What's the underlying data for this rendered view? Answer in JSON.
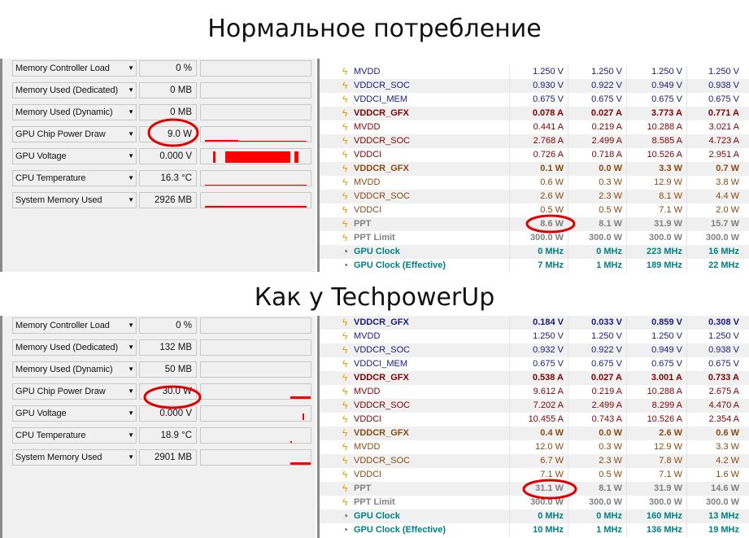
{
  "captions": {
    "top": "Нормальное потребление",
    "bottom": "Как у TechpowerUp"
  },
  "colors": {
    "volt": "#1a1a80",
    "amp": "#800000",
    "watt": "#8b4a10",
    "ppt": "#808080",
    "clock": "#008080",
    "graph": "#ff0000",
    "annotation": "#e00000"
  },
  "panels": [
    {
      "sensors": [
        {
          "label": "Memory Controller Load",
          "value": "0 %"
        },
        {
          "label": "Memory Used (Dedicated)",
          "value": "0 MB"
        },
        {
          "label": "Memory Used (Dynamic)",
          "value": "0 MB"
        },
        {
          "label": "GPU Chip Power Draw",
          "value": "9.0 W"
        },
        {
          "label": "GPU Voltage",
          "value": "0.000 V"
        },
        {
          "label": "CPU Temperature",
          "value": "16.3 °C"
        },
        {
          "label": "System Memory Used",
          "value": "2926 MB"
        }
      ],
      "table": [
        {
          "n": "MVDD",
          "t": "volt",
          "v": [
            "1.250 V",
            "1.250 V",
            "1.250 V",
            "1.250 V"
          ]
        },
        {
          "n": "VDDCR_SOC",
          "t": "volt",
          "v": [
            "0.930 V",
            "0.922 V",
            "0.949 V",
            "0.938 V"
          ]
        },
        {
          "n": "VDDCI_MEM",
          "t": "volt",
          "v": [
            "0.675 V",
            "0.675 V",
            "0.675 V",
            "0.675 V"
          ]
        },
        {
          "n": "VDDCR_GFX",
          "t": "amp",
          "b": true,
          "v": [
            "0.078 A",
            "0.027 A",
            "3.773 A",
            "0.771 A"
          ]
        },
        {
          "n": "MVDD",
          "t": "amp",
          "v": [
            "0.441 A",
            "0.219 A",
            "10.288 A",
            "3.021 A"
          ]
        },
        {
          "n": "VDDCR_SOC",
          "t": "amp",
          "v": [
            "2.768 A",
            "2.499 A",
            "8.585 A",
            "4.723 A"
          ]
        },
        {
          "n": "VDDCI",
          "t": "amp",
          "v": [
            "0.726 A",
            "0.718 A",
            "10.526 A",
            "2.951 A"
          ]
        },
        {
          "n": "VDDCR_GFX",
          "t": "watt",
          "b": true,
          "v": [
            "0.1 W",
            "0.0 W",
            "3.3 W",
            "0.7 W"
          ]
        },
        {
          "n": "MVDD",
          "t": "watt",
          "v": [
            "0.6 W",
            "0.3 W",
            "12.9 W",
            "3.8 W"
          ]
        },
        {
          "n": "VDDCR_SOC",
          "t": "watt",
          "v": [
            "2.6 W",
            "2.3 W",
            "8.1 W",
            "4.4 W"
          ]
        },
        {
          "n": "VDDCI",
          "t": "watt",
          "v": [
            "0.5 W",
            "0.5 W",
            "7.1 W",
            "2.0 W"
          ]
        },
        {
          "n": "PPT",
          "t": "ppt",
          "b": true,
          "v": [
            "8.6 W",
            "8.1 W",
            "31.9 W",
            "15.7 W"
          ]
        },
        {
          "n": "PPT Limit",
          "t": "ppt",
          "b": true,
          "v": [
            "300.0 W",
            "300.0 W",
            "300.0 W",
            "300.0 W"
          ]
        },
        {
          "n": "GPU Clock",
          "t": "clock",
          "b": true,
          "v": [
            "0 MHz",
            "0 MHz",
            "223 MHz",
            "16 MHz"
          ]
        },
        {
          "n": "GPU Clock (Effective)",
          "t": "clock",
          "b": true,
          "v": [
            "7 MHz",
            "1 MHz",
            "189 MHz",
            "22 MHz"
          ]
        }
      ]
    },
    {
      "sensors": [
        {
          "label": "Memory Controller Load",
          "value": "0 %"
        },
        {
          "label": "Memory Used (Dedicated)",
          "value": "132 MB"
        },
        {
          "label": "Memory Used (Dynamic)",
          "value": "50 MB"
        },
        {
          "label": "GPU Chip Power Draw",
          "value": "30.0 W"
        },
        {
          "label": "GPU Voltage",
          "value": "0.000 V"
        },
        {
          "label": "CPU Temperature",
          "value": "18.9 °C"
        },
        {
          "label": "System Memory Used",
          "value": "2901 MB"
        }
      ],
      "table": [
        {
          "n": "VDDCR_GFX",
          "t": "volt",
          "b": true,
          "v": [
            "0.184 V",
            "0.033 V",
            "0.859 V",
            "0.308 V"
          ]
        },
        {
          "n": "MVDD",
          "t": "volt",
          "v": [
            "1.250 V",
            "1.250 V",
            "1.250 V",
            "1.250 V"
          ]
        },
        {
          "n": "VDDCR_SOC",
          "t": "volt",
          "v": [
            "0.932 V",
            "0.922 V",
            "0.949 V",
            "0.938 V"
          ]
        },
        {
          "n": "VDDCI_MEM",
          "t": "volt",
          "v": [
            "0.675 V",
            "0.675 V",
            "0.675 V",
            "0.675 V"
          ]
        },
        {
          "n": "VDDCR_GFX",
          "t": "amp",
          "b": true,
          "v": [
            "0.538 A",
            "0.027 A",
            "3.001 A",
            "0.733 A"
          ]
        },
        {
          "n": "MVDD",
          "t": "amp",
          "v": [
            "9.612 A",
            "0.219 A",
            "10.288 A",
            "2.675 A"
          ]
        },
        {
          "n": "VDDCR_SOC",
          "t": "amp",
          "v": [
            "7.202 A",
            "2.499 A",
            "8.299 A",
            "4.470 A"
          ]
        },
        {
          "n": "VDDCI",
          "t": "amp",
          "v": [
            "10.455 A",
            "0.743 A",
            "10.526 A",
            "2.354 A"
          ]
        },
        {
          "n": "VDDCR_GFX",
          "t": "watt",
          "b": true,
          "v": [
            "0.4 W",
            "0.0 W",
            "2.6 W",
            "0.6 W"
          ]
        },
        {
          "n": "MVDD",
          "t": "watt",
          "v": [
            "12.0 W",
            "0.3 W",
            "12.9 W",
            "3.3 W"
          ]
        },
        {
          "n": "VDDCR_SOC",
          "t": "watt",
          "v": [
            "6.7 W",
            "2.3 W",
            "7.8 W",
            "4.2 W"
          ]
        },
        {
          "n": "VDDCI",
          "t": "watt",
          "v": [
            "7.1 W",
            "0.5 W",
            "7.1 W",
            "1.6 W"
          ]
        },
        {
          "n": "PPT",
          "t": "ppt",
          "b": true,
          "v": [
            "31.1 W",
            "8.1 W",
            "31.9 W",
            "14.6 W"
          ]
        },
        {
          "n": "PPT Limit",
          "t": "ppt",
          "b": true,
          "v": [
            "300.0 W",
            "300.0 W",
            "300.0 W",
            "300.0 W"
          ]
        },
        {
          "n": "GPU Clock",
          "t": "clock",
          "b": true,
          "v": [
            "0 MHz",
            "0 MHz",
            "160 MHz",
            "13 MHz"
          ]
        },
        {
          "n": "GPU Clock (Effective)",
          "t": "clock",
          "b": true,
          "v": [
            "10 MHz",
            "1 MHz",
            "136 MHz",
            "19 MHz"
          ]
        }
      ]
    }
  ]
}
